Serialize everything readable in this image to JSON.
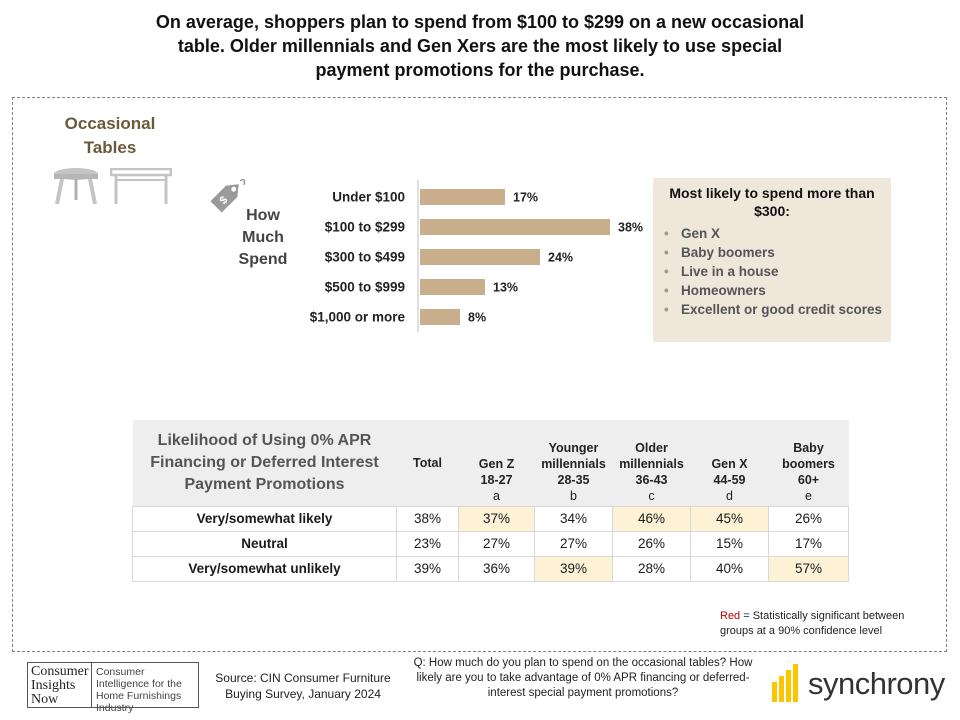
{
  "title": "On average, shoppers plan to spend from $100 to $299 on a new occasional table. Older millennials and Gen Xers are the most likely to use special payment promotions for the purchase.",
  "category": {
    "title_line1": "Occasional",
    "title_line2": "Tables",
    "icons": [
      "round-stool-icon",
      "side-table-icon",
      "price-tag-icon"
    ]
  },
  "how_much": [
    "How",
    "Much",
    "Spend"
  ],
  "chart_data": {
    "type": "bar",
    "orientation": "horizontal",
    "categories": [
      "Under $100",
      "$100 to $299",
      "$300 to $499",
      "$500 to $999",
      "$1,000 or more"
    ],
    "values": [
      17,
      38,
      24,
      13,
      8
    ],
    "value_labels": [
      "17%",
      "38%",
      "24%",
      "13%",
      "8%"
    ],
    "unit": "%",
    "xlim": [
      0,
      40
    ],
    "bar_color": "#c8ae8a",
    "grid": false
  },
  "callout": {
    "title": "Most likely to spend more than $300:",
    "items": [
      "Gen X",
      "Baby boomers",
      "Live in a house",
      "Homeowners",
      "Excellent or good credit scores"
    ]
  },
  "likelihood_table": {
    "corner_title": "Likelihood of Using 0% APR Financing or Deferred Interest Payment Promotions",
    "columns": [
      {
        "name": "Total",
        "range": "",
        "letter": ""
      },
      {
        "name": "Gen Z",
        "range": "18-27",
        "letter": "a"
      },
      {
        "name": "Younger millennials",
        "range": "28-35",
        "letter": "b"
      },
      {
        "name": "Older millennials",
        "range": "36-43",
        "letter": "c"
      },
      {
        "name": "Gen X",
        "range": "44-59",
        "letter": "d"
      },
      {
        "name": "Baby boomers",
        "range": "60+",
        "letter": "e"
      }
    ],
    "rows": [
      {
        "label": "Very/somewhat likely",
        "values": [
          "38%",
          "37%",
          "34%",
          "46%",
          "45%",
          "26%"
        ]
      },
      {
        "label": "Neutral",
        "values": [
          "23%",
          "27%",
          "27%",
          "26%",
          "15%",
          "17%"
        ]
      },
      {
        "label": "Very/somewhat unlikely",
        "values": [
          "39%",
          "36%",
          "39%",
          "28%",
          "40%",
          "57%"
        ]
      }
    ],
    "highlight_color": "#fdf2d6"
  },
  "significance_note": {
    "red_word": "Red",
    "text": " = Statistically significant between groups at a 90% confidence level"
  },
  "footer": {
    "cin_logo_left": [
      "Consumer",
      "Insights",
      "Now"
    ],
    "cin_logo_right": "Consumer Intelligence for the Home Furnishings Industry",
    "source": "Source: CIN Consumer Furniture Buying Survey, January 2024",
    "question": "Q: How much do you plan to spend on the occasional tables? How likely are you to take advantage of 0% APR financing or deferred-interest special payment promotions?",
    "brand": "synchrony",
    "brand_color": "#fbc600"
  }
}
